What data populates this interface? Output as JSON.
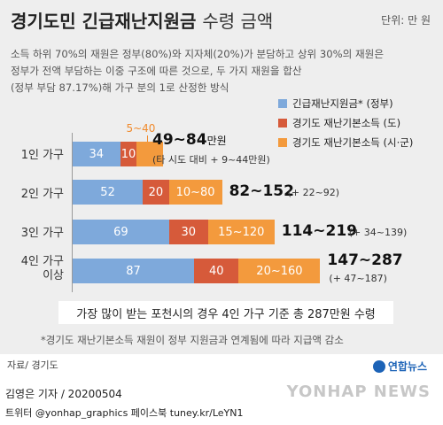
{
  "header": {
    "title": "경기도민 긴급재난지원금",
    "title_sub": "수령 금액",
    "unit": "단위: 만 원"
  },
  "description": [
    "소득 하위 70%의 재원은 정부(80%)와 지자체(20%)가 분담하고 상위 30%의 재원은",
    "정부가 전액 부담하는 이중 구조에 따른 것으로, 두 가지 재원을 합산",
    "(정부 부담 87.17%)해 가구 분의 1로 산정한 방식"
  ],
  "legend": [
    {
      "label": "긴급재난지원금* (정부)",
      "color": "#7ea9db"
    },
    {
      "label": "경기도 재난기본소득 (도)",
      "color": "#d65a3a"
    },
    {
      "label": "경기도 재난기본소득 (시·군)",
      "color": "#f39a3d"
    }
  ],
  "chart_data": {
    "type": "bar",
    "orientation": "horizontal",
    "stacked": true,
    "categories": [
      "1인 가구",
      "2인 가구",
      "3인 가구",
      "4인 가구 이상"
    ],
    "series": [
      {
        "name": "긴급재난지원금* (정부)",
        "values": [
          34,
          52,
          69,
          87
        ]
      },
      {
        "name": "경기도 재난기본소득 (도)",
        "values": [
          10,
          20,
          30,
          40
        ]
      },
      {
        "name": "경기도 재난기본소득 (시·군)",
        "ranges": [
          [
            5,
            40
          ],
          [
            10,
            80
          ],
          [
            15,
            120
          ],
          [
            20,
            160
          ]
        ]
      }
    ],
    "segment_labels": [
      [
        "34",
        "10",
        "5~40"
      ],
      [
        "52",
        "20",
        "10~80"
      ],
      [
        "69",
        "30",
        "15~120"
      ],
      [
        "87",
        "40",
        "20~160"
      ]
    ],
    "totals": [
      "49~84",
      "82~152",
      "114~219",
      "147~287"
    ],
    "total_unit": "만원",
    "ranges_text": [
      "(타 시도 대비 + 9~44만원)",
      "(+ 22~92)",
      "(+ 34~139)",
      "(+ 47~187)"
    ]
  },
  "highlight": "가장 많이 받는 포천시의 경우 4인 가구 기준 총 287만원 수령",
  "footnote": "*경기도 재난기본소득 재원이 정부 지원금과 연계됨에 따라 지급액 감소",
  "source": "자료/ 경기도",
  "brand_small": "연합뉴스",
  "brand_big": "YONHAP NEWS",
  "author": "김영은 기자 / 20200504",
  "social": "트위터 @yonhap_graphics  페이스북 tuney.kr/LeYN1"
}
